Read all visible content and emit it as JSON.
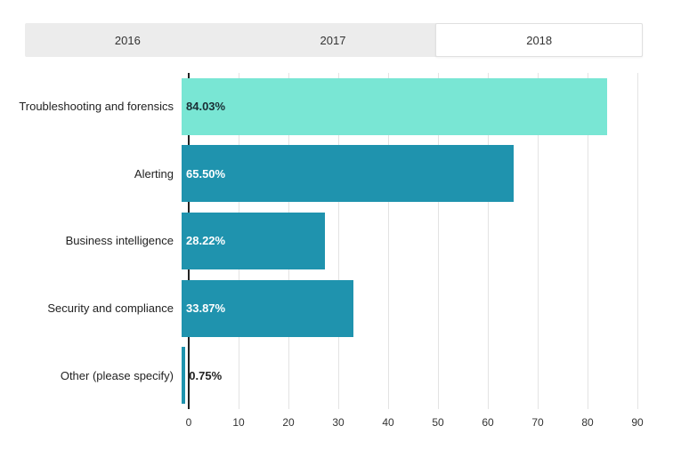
{
  "tabs": {
    "items": [
      {
        "label": "2016",
        "active": false
      },
      {
        "label": "2017",
        "active": false
      },
      {
        "label": "2018",
        "active": true
      }
    ]
  },
  "chart_data": {
    "type": "bar",
    "orientation": "horizontal",
    "title": "",
    "xlabel": "",
    "ylabel": "",
    "categories": [
      "Troubleshooting and forensics",
      "Alerting",
      "Business intelligence",
      "Security and compliance",
      "Other (please specify)"
    ],
    "values": [
      84.03,
      65.5,
      28.22,
      33.87,
      0.75
    ],
    "bars": [
      {
        "category": "Troubleshooting and forensics",
        "value": 84.03,
        "label": "84.03%",
        "color": "#79e6d4",
        "label_color": "#1a2e35",
        "label_outside": false
      },
      {
        "category": "Alerting",
        "value": 65.5,
        "label": "65.50%",
        "color": "#1f93ae",
        "label_color": "#ffffff",
        "label_outside": false
      },
      {
        "category": "Business intelligence",
        "value": 28.22,
        "label": "28.22%",
        "color": "#1f93ae",
        "label_color": "#ffffff",
        "label_outside": false
      },
      {
        "category": "Security and compliance",
        "value": 33.87,
        "label": "33.87%",
        "color": "#1f93ae",
        "label_color": "#ffffff",
        "label_outside": false
      },
      {
        "category": "Other (please specify)",
        "value": 0.75,
        "label": "0.75%",
        "color": "#1f93ae",
        "label_color": "#222222",
        "label_outside": true
      }
    ],
    "xlim": [
      0,
      90
    ],
    "xticks": [
      0,
      10,
      20,
      30,
      40,
      50,
      60,
      70,
      80,
      90
    ],
    "grid": true,
    "legend": "none"
  },
  "colors": {
    "tab_bg": "#ececec",
    "active_tab_bg": "#ffffff",
    "bar_highlight": "#79e6d4",
    "bar_default": "#1f93ae",
    "gridline": "#e3e3e3",
    "axis": "#222222"
  }
}
